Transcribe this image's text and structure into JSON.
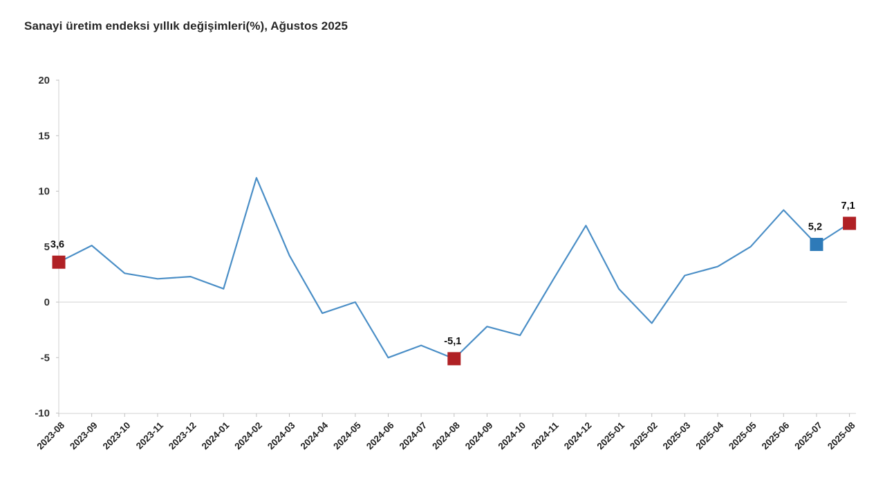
{
  "title": "Sanayi üretim endeksi yıllık değişimleri(%), Ağustos 2025",
  "chart_data": {
    "type": "line",
    "title": "Sanayi üretim endeksi yıllık değişimleri(%), Ağustos 2025",
    "xlabel": "",
    "ylabel": "",
    "ylim": [
      -10,
      20
    ],
    "yticks": [
      20,
      15,
      10,
      5,
      0,
      -5,
      -10
    ],
    "grid": "horizontal line at 0 and baseline at -10 only",
    "legend": "none",
    "line_color": "#4a8ec6",
    "axis_color": "#d9d9d9",
    "tick_color": "#bfbfbf",
    "categories": [
      "2023-08",
      "2023-09",
      "2023-10",
      "2023-11",
      "2023-12",
      "2024-01",
      "2024-02",
      "2024-03",
      "2024-04",
      "2024-05",
      "2024-06",
      "2024-07",
      "2024-08",
      "2024-09",
      "2024-10",
      "2024-11",
      "2024-12",
      "2025-01",
      "2025-02",
      "2025-03",
      "2025-04",
      "2025-05",
      "2025-06",
      "2025-07",
      "2025-08"
    ],
    "values": [
      3.6,
      5.1,
      2.6,
      2.1,
      2.3,
      1.2,
      11.2,
      4.2,
      -1.0,
      0.0,
      -5.0,
      -3.9,
      -5.1,
      -2.2,
      -3.0,
      2.0,
      6.9,
      1.2,
      -1.9,
      2.4,
      3.2,
      5.0,
      8.3,
      5.2,
      7.1
    ],
    "highlighted_points": [
      {
        "category": "2023-08",
        "index": 0,
        "value": 3.6,
        "label": "3,6",
        "marker": "square",
        "marker_color": "#b02125"
      },
      {
        "category": "2024-08",
        "index": 12,
        "value": -5.1,
        "label": "-5,1",
        "marker": "square",
        "marker_color": "#b02125"
      },
      {
        "category": "2025-07",
        "index": 23,
        "value": 5.2,
        "label": "5,2",
        "marker": "square",
        "marker_color": "#2e7ab8"
      },
      {
        "category": "2025-08",
        "index": 24,
        "value": 7.1,
        "label": "7,1",
        "marker": "square",
        "marker_color": "#b02125"
      }
    ]
  }
}
